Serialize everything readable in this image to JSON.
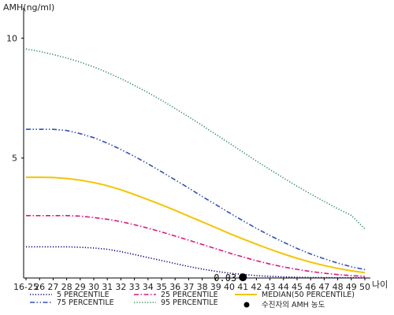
{
  "chart_data": {
    "type": "line",
    "ylabel": "AMH(ng/ml)",
    "xlabel": "나이",
    "ylim": [
      0,
      11
    ],
    "yticks": [
      5,
      10
    ],
    "categories": [
      "16-25",
      "26",
      "27",
      "28",
      "29",
      "30",
      "31",
      "32",
      "33",
      "34",
      "35",
      "36",
      "37",
      "38",
      "39",
      "40",
      "41",
      "42",
      "43",
      "44",
      "45",
      "46",
      "47",
      "48",
      "49",
      "50"
    ],
    "series": [
      {
        "name": "5 PERCENTILE",
        "color": "#000080",
        "style": "dotted",
        "values": [
          1.3,
          1.3,
          1.3,
          1.3,
          1.28,
          1.25,
          1.2,
          1.1,
          0.98,
          0.85,
          0.73,
          0.6,
          0.48,
          0.37,
          0.28,
          0.2,
          0.15,
          0.1,
          0.07,
          0.05,
          0.03,
          0.02,
          0.015,
          0.01,
          0.01,
          0.01
        ]
      },
      {
        "name": "25 PERCENTILE",
        "color": "#e0187a",
        "style": "dashdot",
        "values": [
          2.6,
          2.6,
          2.6,
          2.6,
          2.58,
          2.52,
          2.45,
          2.35,
          2.22,
          2.08,
          1.92,
          1.75,
          1.58,
          1.4,
          1.22,
          1.04,
          0.88,
          0.72,
          0.58,
          0.46,
          0.36,
          0.27,
          0.2,
          0.14,
          0.1,
          0.07
        ]
      },
      {
        "name": "MEDIAN(50 PERCENTILE)",
        "color": "#f5c400",
        "style": "solid",
        "values": [
          4.2,
          4.2,
          4.19,
          4.15,
          4.08,
          3.98,
          3.85,
          3.68,
          3.48,
          3.27,
          3.05,
          2.82,
          2.58,
          2.34,
          2.1,
          1.86,
          1.63,
          1.41,
          1.2,
          1.0,
          0.82,
          0.66,
          0.52,
          0.4,
          0.3,
          0.22
        ]
      },
      {
        "name": "75 PERCENTILE",
        "color": "#3050c0",
        "style": "dashdotdot",
        "values": [
          6.2,
          6.2,
          6.2,
          6.15,
          6.02,
          5.85,
          5.62,
          5.36,
          5.07,
          4.76,
          4.43,
          4.09,
          3.75,
          3.4,
          3.06,
          2.72,
          2.39,
          2.07,
          1.77,
          1.49,
          1.23,
          1.0,
          0.8,
          0.62,
          0.47,
          0.35
        ]
      },
      {
        "name": "95 PERCENTILE",
        "color": "#2e8b57",
        "style": "dotted",
        "values": [
          9.55,
          9.45,
          9.32,
          9.17,
          9.0,
          8.8,
          8.57,
          8.31,
          8.03,
          7.73,
          7.41,
          7.07,
          6.72,
          6.36,
          5.99,
          5.62,
          5.25,
          4.88,
          4.52,
          4.17,
          3.83,
          3.5,
          3.19,
          2.89,
          2.61,
          2.05
        ]
      }
    ],
    "marker": {
      "name": "수진자의 AMH 농도",
      "category": "41",
      "value": 0.03,
      "label": "0.03"
    },
    "legend_placement": "bottom",
    "grid": false
  }
}
